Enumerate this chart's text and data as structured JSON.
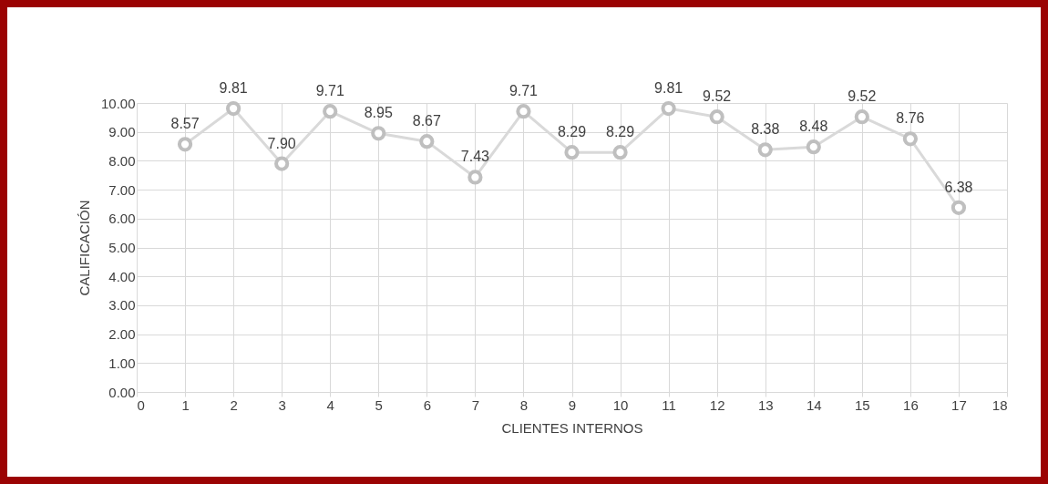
{
  "chart_data": {
    "type": "line",
    "xlabel": "CLIENTES INTERNOS",
    "ylabel": "CALIFICACIÓN",
    "x": [
      1,
      2,
      3,
      4,
      5,
      6,
      7,
      8,
      9,
      10,
      11,
      12,
      13,
      14,
      15,
      16,
      17
    ],
    "series": [
      {
        "color": "#d9d9d9",
        "values": [
          8.57,
          9.81,
          7.9,
          9.71,
          8.95,
          8.67,
          7.43,
          9.71,
          8.29,
          8.29,
          9.81,
          9.52,
          8.38,
          8.48,
          9.52,
          8.76,
          6.38
        ],
        "value_labels": [
          "8.57",
          "9.81",
          "7.90",
          "9.71",
          "8.95",
          "8.67",
          "7.43",
          "9.71",
          "8.29",
          "8.29",
          "9.81",
          "9.52",
          "8.38",
          "8.48",
          "9.52",
          "8.76",
          "6.38"
        ]
      }
    ],
    "xlim": [
      0,
      18
    ],
    "xticks": [
      0,
      1,
      2,
      3,
      4,
      5,
      6,
      7,
      8,
      9,
      10,
      11,
      12,
      13,
      14,
      15,
      16,
      17,
      18
    ],
    "ylim": [
      0,
      10
    ],
    "yticks": [
      {
        "value": 0,
        "label": "0.00"
      },
      {
        "value": 1,
        "label": "1.00"
      },
      {
        "value": 2,
        "label": "2.00"
      },
      {
        "value": 3,
        "label": "3.00"
      },
      {
        "value": 4,
        "label": "4.00"
      },
      {
        "value": 5,
        "label": "5.00"
      },
      {
        "value": 6,
        "label": "6.00"
      },
      {
        "value": 7,
        "label": "7.00"
      },
      {
        "value": 8,
        "label": "8.00"
      },
      {
        "value": 9,
        "label": "9.00"
      },
      {
        "value": 10,
        "label": "10.00"
      }
    ],
    "grid": true,
    "marker": "circle",
    "line_style": "solid"
  }
}
